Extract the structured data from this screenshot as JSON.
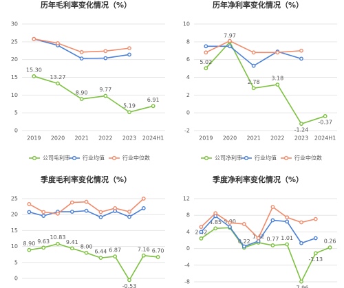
{
  "chart_data": [
    {
      "type": "line",
      "title": "历年毛利率变化情况（%）",
      "categories": [
        "2019",
        "2020",
        "2021",
        "2022",
        "2023",
        "2024H1"
      ],
      "ylim": [
        0,
        30
      ],
      "yticks": [
        0,
        5,
        10,
        15,
        20,
        25,
        30
      ],
      "grid": true,
      "series": [
        {
          "name": "公司毛利率",
          "color": "#7cc13f",
          "values": [
            15.3,
            13.27,
            8.9,
            9.77,
            5.19,
            6.91
          ],
          "value_labels": [
            "15.30",
            "13.27",
            "8.90",
            "9.77",
            "5.19",
            "6.91"
          ]
        },
        {
          "name": "行业均值",
          "color": "#4a7fd8",
          "values": [
            25.8,
            24.0,
            20.3,
            20.4,
            21.4,
            null
          ]
        },
        {
          "name": "行业中位数",
          "color": "#f08b6b",
          "values": [
            25.8,
            24.6,
            22.1,
            22.4,
            23.2,
            null
          ]
        }
      ]
    },
    {
      "type": "line",
      "title": "历年净利率变化情况（%）",
      "categories": [
        "2019",
        "2020",
        "2021",
        "2022",
        "2023",
        "2024H1"
      ],
      "ylim": [
        -2,
        10
      ],
      "yticks": [
        -2,
        0,
        2,
        4,
        6,
        8,
        10
      ],
      "grid": true,
      "series": [
        {
          "name": "公司净利率",
          "color": "#7cc13f",
          "values": [
            5.02,
            7.97,
            2.78,
            3.18,
            -1.24,
            -0.37
          ],
          "value_labels": [
            "5.02",
            "7.97",
            "2.78",
            "3.18",
            "-1.24",
            "-0.37"
          ]
        },
        {
          "name": "行业均值",
          "color": "#4a7fd8",
          "values": [
            7.5,
            7.5,
            5.3,
            6.9,
            6.1,
            null
          ]
        },
        {
          "name": "行业中位数",
          "color": "#f08b6b",
          "values": [
            6.8,
            8.1,
            6.8,
            6.8,
            7.0,
            null
          ]
        }
      ]
    },
    {
      "type": "line",
      "title": "季度毛利率变化情况（%）",
      "categories": [
        null,
        null,
        null,
        null,
        null,
        null,
        null,
        null,
        null,
        null
      ],
      "ylim": [
        0,
        25
      ],
      "yticks": [
        0,
        5,
        10,
        15,
        20,
        25
      ],
      "grid": true,
      "series": [
        {
          "color": "#7cc13f",
          "values": [
            8.9,
            9.63,
            10.83,
            9.41,
            8.0,
            6.44,
            6.87,
            -0.53,
            7.16,
            6.7
          ],
          "value_labels": [
            "8.90",
            "9.63",
            "10.83",
            "9.41",
            "8.00",
            "6.44",
            "6.87",
            "-0.53",
            "7.16",
            "6.70"
          ]
        },
        {
          "color": "#4a7fd8",
          "values": [
            20.8,
            19.6,
            20.9,
            20.9,
            21.2,
            19.2,
            21.1,
            19.3,
            22.0,
            null
          ]
        },
        {
          "color": "#f08b6b",
          "values": [
            23.3,
            20.8,
            20.3,
            23.8,
            24.0,
            20.8,
            22.0,
            20.9,
            25.0,
            null
          ]
        }
      ]
    },
    {
      "type": "line",
      "title": "季度净利率变化情况（%）",
      "categories": [
        null,
        null,
        null,
        null,
        null,
        null,
        null,
        null,
        null,
        null
      ],
      "ylim": [
        -8,
        12
      ],
      "yticks": [
        -8,
        -4,
        0,
        4,
        8,
        12
      ],
      "grid": true,
      "series": [
        {
          "color": "#7cc13f",
          "values": [
            2.42,
            4.85,
            5.0,
            0.22,
            1.42,
            0.77,
            1.01,
            -7.96,
            -1.13,
            0.26
          ],
          "value_labels": [
            "2.42",
            "4.85",
            "5.00",
            "0.22",
            "1.42",
            "0.77",
            "1.01",
            "-7.96",
            "-1.13",
            "0.26"
          ]
        },
        {
          "color": "#4a7fd8",
          "values": [
            4.0,
            7.8,
            5.2,
            0.5,
            1.8,
            6.8,
            6.5,
            1.3,
            2.5,
            null
          ]
        },
        {
          "color": "#f08b6b",
          "values": [
            5.2,
            8.5,
            6.2,
            5.9,
            2.5,
            10.0,
            7.5,
            6.3,
            7.1,
            null
          ]
        }
      ]
    }
  ]
}
